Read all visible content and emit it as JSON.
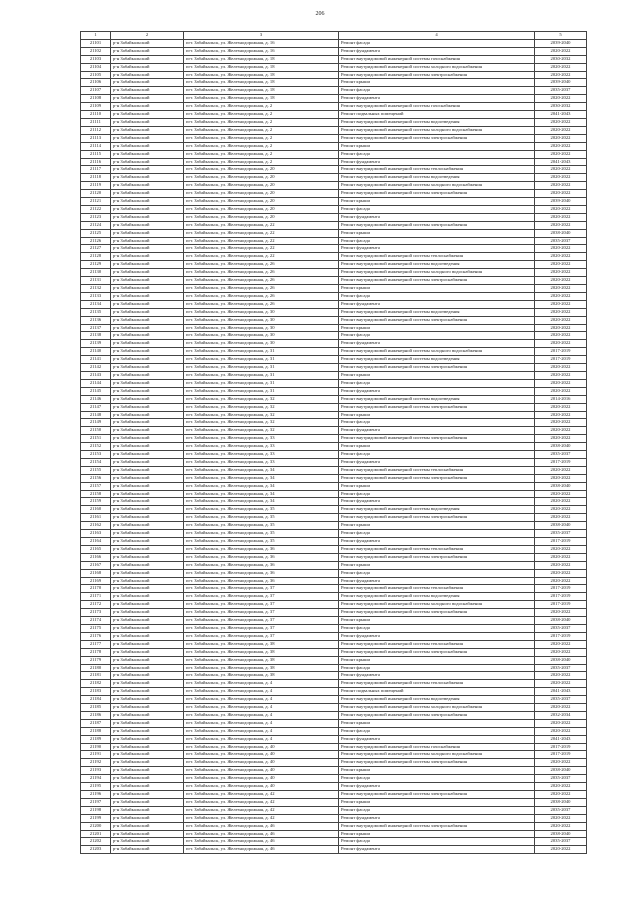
{
  "page_number": "206",
  "header": [
    "1",
    "2",
    "3",
    "4",
    "5"
  ],
  "district": "р-н Забайкальский",
  "address_prefix": "пгт. Забайкальск, ул. Железнодорожная, д. ",
  "work_types": {
    "A": "Ремонт фасада",
    "B": "Ремонт фундамента",
    "K": "Ремонт крыши",
    "P": "Ремонт подвальных помещений",
    "G": "Ремонт внутридомовой инженерной системы газоснабжения",
    "H": "Ремонт внутридомовой инженерной системы холодного водоснабжения",
    "E": "Ремонт внутридомовой инженерной системы электроснабжения",
    "T": "Ремонт внутридомовой инженерной системы теплоснабжения",
    "V": "Ремонт внутридомовой инженерной системы водоотведения"
  },
  "rows": [
    [
      "21101",
      "16",
      "A",
      "2039-2040"
    ],
    [
      "21102",
      "16",
      "B",
      "2020-2022"
    ],
    [
      "21103",
      "18",
      "G",
      "2030-2032"
    ],
    [
      "21104",
      "18",
      "H",
      "2020-2022"
    ],
    [
      "21105",
      "18",
      "E",
      "2020-2022"
    ],
    [
      "21106",
      "18",
      "K",
      "2039-2040"
    ],
    [
      "21107",
      "18",
      "A",
      "2035-2037"
    ],
    [
      "21108",
      "18",
      "B",
      "2020-2022"
    ],
    [
      "21109",
      "2",
      "G",
      "2030-2032"
    ],
    [
      "21110",
      "2",
      "P",
      "2041-2043"
    ],
    [
      "21111",
      "2",
      "V",
      "2020-2022"
    ],
    [
      "21112",
      "2",
      "H",
      "2020-2022"
    ],
    [
      "21113",
      "2",
      "E",
      "2020-2022"
    ],
    [
      "21114",
      "2",
      "K",
      "2020-2022"
    ],
    [
      "21115",
      "2",
      "A",
      "2020-2022"
    ],
    [
      "21116",
      "2",
      "B",
      "2041-2043"
    ],
    [
      "21117",
      "20",
      "T",
      "2020-2022"
    ],
    [
      "21118",
      "20",
      "V",
      "2020-2022"
    ],
    [
      "21119",
      "20",
      "H",
      "2020-2022"
    ],
    [
      "21120",
      "20",
      "E",
      "2020-2022"
    ],
    [
      "21121",
      "20",
      "K",
      "2039-2040"
    ],
    [
      "21122",
      "20",
      "A",
      "2020-2022"
    ],
    [
      "21123",
      "20",
      "B",
      "2020-2022"
    ],
    [
      "21124",
      "22",
      "E",
      "2020-2022"
    ],
    [
      "21125",
      "22",
      "K",
      "2038-2040"
    ],
    [
      "21126",
      "22",
      "A",
      "2035-2037"
    ],
    [
      "21127",
      "22",
      "B",
      "2020-2022"
    ],
    [
      "21128",
      "22",
      "T",
      "2020-2022"
    ],
    [
      "21129",
      "26",
      "V",
      "2020-2022"
    ],
    [
      "21130",
      "26",
      "H",
      "2020-2022"
    ],
    [
      "21131",
      "26",
      "E",
      "2020-2022"
    ],
    [
      "21132",
      "26",
      "K",
      "2020-2022"
    ],
    [
      "21133",
      "26",
      "A",
      "2020-2022"
    ],
    [
      "21134",
      "26",
      "B",
      "2020-2022"
    ],
    [
      "21135",
      "30",
      "V",
      "2020-2022"
    ],
    [
      "21136",
      "30",
      "E",
      "2020-2022"
    ],
    [
      "21137",
      "30",
      "K",
      "2020-2022"
    ],
    [
      "21138",
      "30",
      "A",
      "2020-2022"
    ],
    [
      "21139",
      "30",
      "B",
      "2020-2022"
    ],
    [
      "21140",
      "31",
      "H",
      "2017-2019"
    ],
    [
      "21141",
      "31",
      "V",
      "2017-2019"
    ],
    [
      "21142",
      "31",
      "E",
      "2020-2022"
    ],
    [
      "21143",
      "31",
      "K",
      "2020-2022"
    ],
    [
      "21144",
      "31",
      "A",
      "2020-2022"
    ],
    [
      "21145",
      "31",
      "B",
      "2020-2022"
    ],
    [
      "21146",
      "32",
      "V",
      "2014-2016"
    ],
    [
      "21147",
      "32",
      "E",
      "2020-2022"
    ],
    [
      "21148",
      "32",
      "K",
      "2020-2022"
    ],
    [
      "21149",
      "32",
      "A",
      "2020-2022"
    ],
    [
      "21150",
      "32",
      "B",
      "2020-2022"
    ],
    [
      "21151",
      "33",
      "E",
      "2020-2022"
    ],
    [
      "21152",
      "33",
      "K",
      "2038-2040"
    ],
    [
      "21153",
      "33",
      "A",
      "2035-2037"
    ],
    [
      "21154",
      "33",
      "B",
      "2017-2019"
    ],
    [
      "21155",
      "34",
      "T",
      "2020-2022"
    ],
    [
      "21156",
      "34",
      "E",
      "2020-2022"
    ],
    [
      "21157",
      "34",
      "K",
      "2038-2040"
    ],
    [
      "21158",
      "34",
      "A",
      "2020-2022"
    ],
    [
      "21159",
      "34",
      "B",
      "2020-2022"
    ],
    [
      "21160",
      "35",
      "V",
      "2020-2022"
    ],
    [
      "21161",
      "35",
      "E",
      "2020-2022"
    ],
    [
      "21162",
      "35",
      "K",
      "2038-2040"
    ],
    [
      "21163",
      "35",
      "A",
      "2035-2037"
    ],
    [
      "21164",
      "35",
      "B",
      "2017-2019"
    ],
    [
      "21165",
      "36",
      "T",
      "2020-2022"
    ],
    [
      "21166",
      "36",
      "E",
      "2020-2022"
    ],
    [
      "21167",
      "36",
      "K",
      "2020-2022"
    ],
    [
      "21168",
      "36",
      "A",
      "2020-2022"
    ],
    [
      "21169",
      "36",
      "B",
      "2020-2022"
    ],
    [
      "21170",
      "37",
      "T",
      "2017-2019"
    ],
    [
      "21171",
      "37",
      "V",
      "2017-2019"
    ],
    [
      "21172",
      "37",
      "H",
      "2017-2019"
    ],
    [
      "21173",
      "37",
      "E",
      "2020-2022"
    ],
    [
      "21174",
      "37",
      "K",
      "2038-2040"
    ],
    [
      "21175",
      "37",
      "A",
      "2035-2037"
    ],
    [
      "21176",
      "37",
      "B",
      "2017-2019"
    ],
    [
      "21177",
      "38",
      "T",
      "2020-2022"
    ],
    [
      "21178",
      "38",
      "E",
      "2020-2022"
    ],
    [
      "21179",
      "38",
      "K",
      "2038-2040"
    ],
    [
      "21180",
      "38",
      "A",
      "2035-2037"
    ],
    [
      "21181",
      "38",
      "B",
      "2020-2022"
    ],
    [
      "21182",
      "4",
      "T",
      "2020-2022"
    ],
    [
      "21183",
      "4",
      "P",
      "2041-2043"
    ],
    [
      "21184",
      "4",
      "V",
      "2035-2037"
    ],
    [
      "21185",
      "4",
      "H",
      "2020-2022"
    ],
    [
      "21186",
      "4",
      "E",
      "2032-2034"
    ],
    [
      "21187",
      "4",
      "K",
      "2020-2022"
    ],
    [
      "21188",
      "4",
      "A",
      "2020-2022"
    ],
    [
      "21189",
      "4",
      "B",
      "2041-2043"
    ],
    [
      "21190",
      "40",
      "G",
      "2017-2019"
    ],
    [
      "21191",
      "40",
      "H",
      "2017-2019"
    ],
    [
      "21192",
      "40",
      "E",
      "2020-2022"
    ],
    [
      "21193",
      "40",
      "K",
      "2038-2040"
    ],
    [
      "21194",
      "40",
      "A",
      "2035-2037"
    ],
    [
      "21195",
      "40",
      "B",
      "2020-2022"
    ],
    [
      "21196",
      "42",
      "E",
      "2020-2022"
    ],
    [
      "21197",
      "42",
      "K",
      "2038-2040"
    ],
    [
      "21198",
      "42",
      "A",
      "2035-2037"
    ],
    [
      "21199",
      "42",
      "B",
      "2020-2022"
    ],
    [
      "21200",
      "46",
      "E",
      "2020-2022"
    ],
    [
      "21201",
      "46",
      "K",
      "2038-2040"
    ],
    [
      "21202",
      "46",
      "A",
      "2035-2037"
    ],
    [
      "21203",
      "46",
      "B",
      "2020-2022"
    ]
  ]
}
